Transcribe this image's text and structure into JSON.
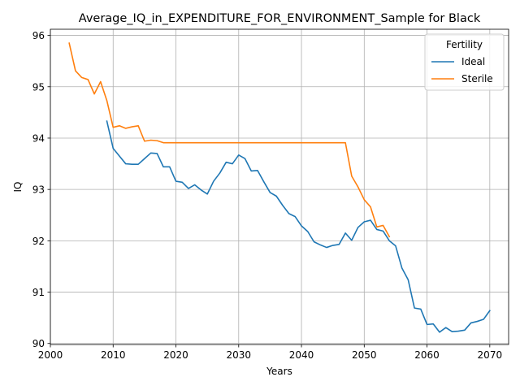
{
  "chart_data": {
    "type": "line",
    "title": "Average_IQ_in_EXPENDITURE_FOR_ENVIRONMENT_Sample for Black",
    "xlabel": "Years",
    "ylabel": "IQ",
    "xlim": [
      2000,
      2073
    ],
    "ylim": [
      89.98,
      96.12
    ],
    "xticks": [
      2000,
      2010,
      2020,
      2030,
      2040,
      2050,
      2060,
      2070
    ],
    "yticks": [
      90,
      91,
      92,
      93,
      94,
      95,
      96
    ],
    "grid": true,
    "legend": {
      "title": "Fertility",
      "position": "top-right"
    },
    "series": [
      {
        "name": "Ideal",
        "color": "#1f77b4",
        "points": [
          [
            2009,
            94.33
          ],
          [
            2010,
            93.8
          ],
          [
            2011,
            93.65
          ],
          [
            2012,
            93.5
          ],
          [
            2013,
            93.49
          ],
          [
            2014,
            93.49
          ],
          [
            2015,
            93.6
          ],
          [
            2016,
            93.71
          ],
          [
            2017,
            93.7
          ],
          [
            2018,
            93.44
          ],
          [
            2019,
            93.44
          ],
          [
            2020,
            93.16
          ],
          [
            2021,
            93.14
          ],
          [
            2022,
            93.02
          ],
          [
            2023,
            93.09
          ],
          [
            2024,
            92.99
          ],
          [
            2025,
            92.91
          ],
          [
            2026,
            93.16
          ],
          [
            2027,
            93.32
          ],
          [
            2028,
            93.53
          ],
          [
            2029,
            93.5
          ],
          [
            2030,
            93.67
          ],
          [
            2031,
            93.6
          ],
          [
            2032,
            93.36
          ],
          [
            2033,
            93.37
          ],
          [
            2034,
            93.15
          ],
          [
            2035,
            92.94
          ],
          [
            2036,
            92.87
          ],
          [
            2037,
            92.69
          ],
          [
            2038,
            92.53
          ],
          [
            2039,
            92.47
          ],
          [
            2040,
            92.29
          ],
          [
            2041,
            92.18
          ],
          [
            2042,
            91.98
          ],
          [
            2043,
            91.92
          ],
          [
            2044,
            91.87
          ],
          [
            2045,
            91.91
          ],
          [
            2046,
            91.93
          ],
          [
            2047,
            92.15
          ],
          [
            2048,
            92.01
          ],
          [
            2049,
            92.26
          ],
          [
            2050,
            92.37
          ],
          [
            2051,
            92.4
          ],
          [
            2052,
            92.22
          ],
          [
            2053,
            92.19
          ],
          [
            2054,
            92.0
          ],
          [
            2055,
            91.9
          ],
          [
            2056,
            91.47
          ],
          [
            2057,
            91.24
          ],
          [
            2058,
            90.69
          ],
          [
            2059,
            90.67
          ],
          [
            2060,
            90.37
          ],
          [
            2061,
            90.38
          ],
          [
            2062,
            90.22
          ],
          [
            2063,
            90.31
          ],
          [
            2064,
            90.23
          ],
          [
            2065,
            90.24
          ],
          [
            2066,
            90.26
          ],
          [
            2067,
            90.4
          ],
          [
            2068,
            90.43
          ],
          [
            2069,
            90.47
          ],
          [
            2070,
            90.64
          ]
        ]
      },
      {
        "name": "Sterile",
        "color": "#ff7f0e",
        "points": [
          [
            2003,
            95.85
          ],
          [
            2004,
            95.31
          ],
          [
            2005,
            95.18
          ],
          [
            2006,
            95.14
          ],
          [
            2007,
            94.86
          ],
          [
            2008,
            95.1
          ],
          [
            2009,
            94.73
          ],
          [
            2010,
            94.21
          ],
          [
            2011,
            94.24
          ],
          [
            2012,
            94.19
          ],
          [
            2013,
            94.22
          ],
          [
            2014,
            94.24
          ],
          [
            2015,
            93.94
          ],
          [
            2016,
            93.96
          ],
          [
            2017,
            93.95
          ],
          [
            2018,
            93.91
          ],
          [
            2019,
            93.91
          ],
          [
            2020,
            93.91
          ],
          [
            2025,
            93.91
          ],
          [
            2030,
            93.91
          ],
          [
            2035,
            93.91
          ],
          [
            2040,
            93.91
          ],
          [
            2045,
            93.91
          ],
          [
            2047,
            93.91
          ],
          [
            2048,
            93.26
          ],
          [
            2049,
            93.05
          ],
          [
            2050,
            92.8
          ],
          [
            2051,
            92.66
          ],
          [
            2052,
            92.27
          ],
          [
            2053,
            92.3
          ],
          [
            2054,
            92.08
          ]
        ]
      }
    ]
  }
}
